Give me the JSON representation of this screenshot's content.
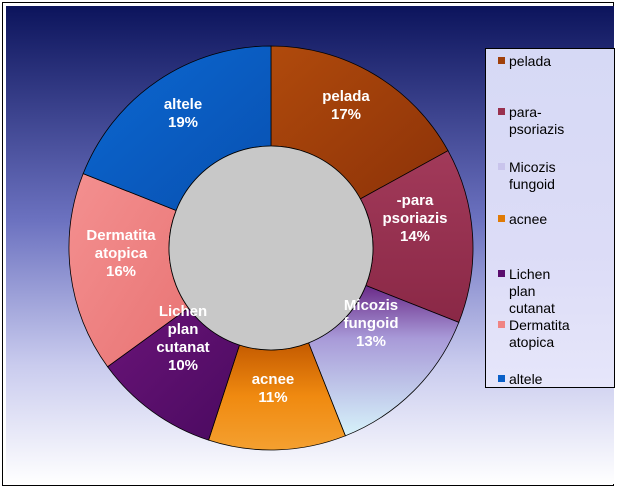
{
  "chart_data": {
    "type": "pie",
    "subtype": "doughnut",
    "slices": [
      {
        "legend": "pelada",
        "label_lines": [
          "pelada",
          "17%"
        ],
        "value": 17,
        "color": "#a0400a"
      },
      {
        "legend": "para-\npsoriazis",
        "label_lines": [
          "-para",
          "psoriazis",
          "14%"
        ],
        "value": 14,
        "color": "#99304e"
      },
      {
        "legend": "Micozis\nfungoid",
        "label_lines": [
          "Micozis",
          "fungoid",
          "13%"
        ],
        "value": 13,
        "color": "#c9c4ec"
      },
      {
        "legend": "acnee",
        "label_lines": [
          "acnee",
          "11%"
        ],
        "value": 11,
        "color": "#e07a05"
      },
      {
        "legend": "Lichen\nplan\ncutanat",
        "label_lines": [
          "Lichen",
          "plan",
          "cutanat",
          "10%"
        ],
        "value": 10,
        "color": "#5a0d6e"
      },
      {
        "legend": "Dermatita\natopica",
        "label_lines": [
          "Dermatita",
          "atopica",
          "16%"
        ],
        "value": 16,
        "color": "#f08484"
      },
      {
        "legend": "altele",
        "label_lines": [
          "altele",
          "19%"
        ],
        "value": 19,
        "color": "#0a60c8"
      }
    ],
    "legend_position": "right",
    "background": {
      "top": "#101a6e",
      "bottom": "#ffffff"
    }
  }
}
